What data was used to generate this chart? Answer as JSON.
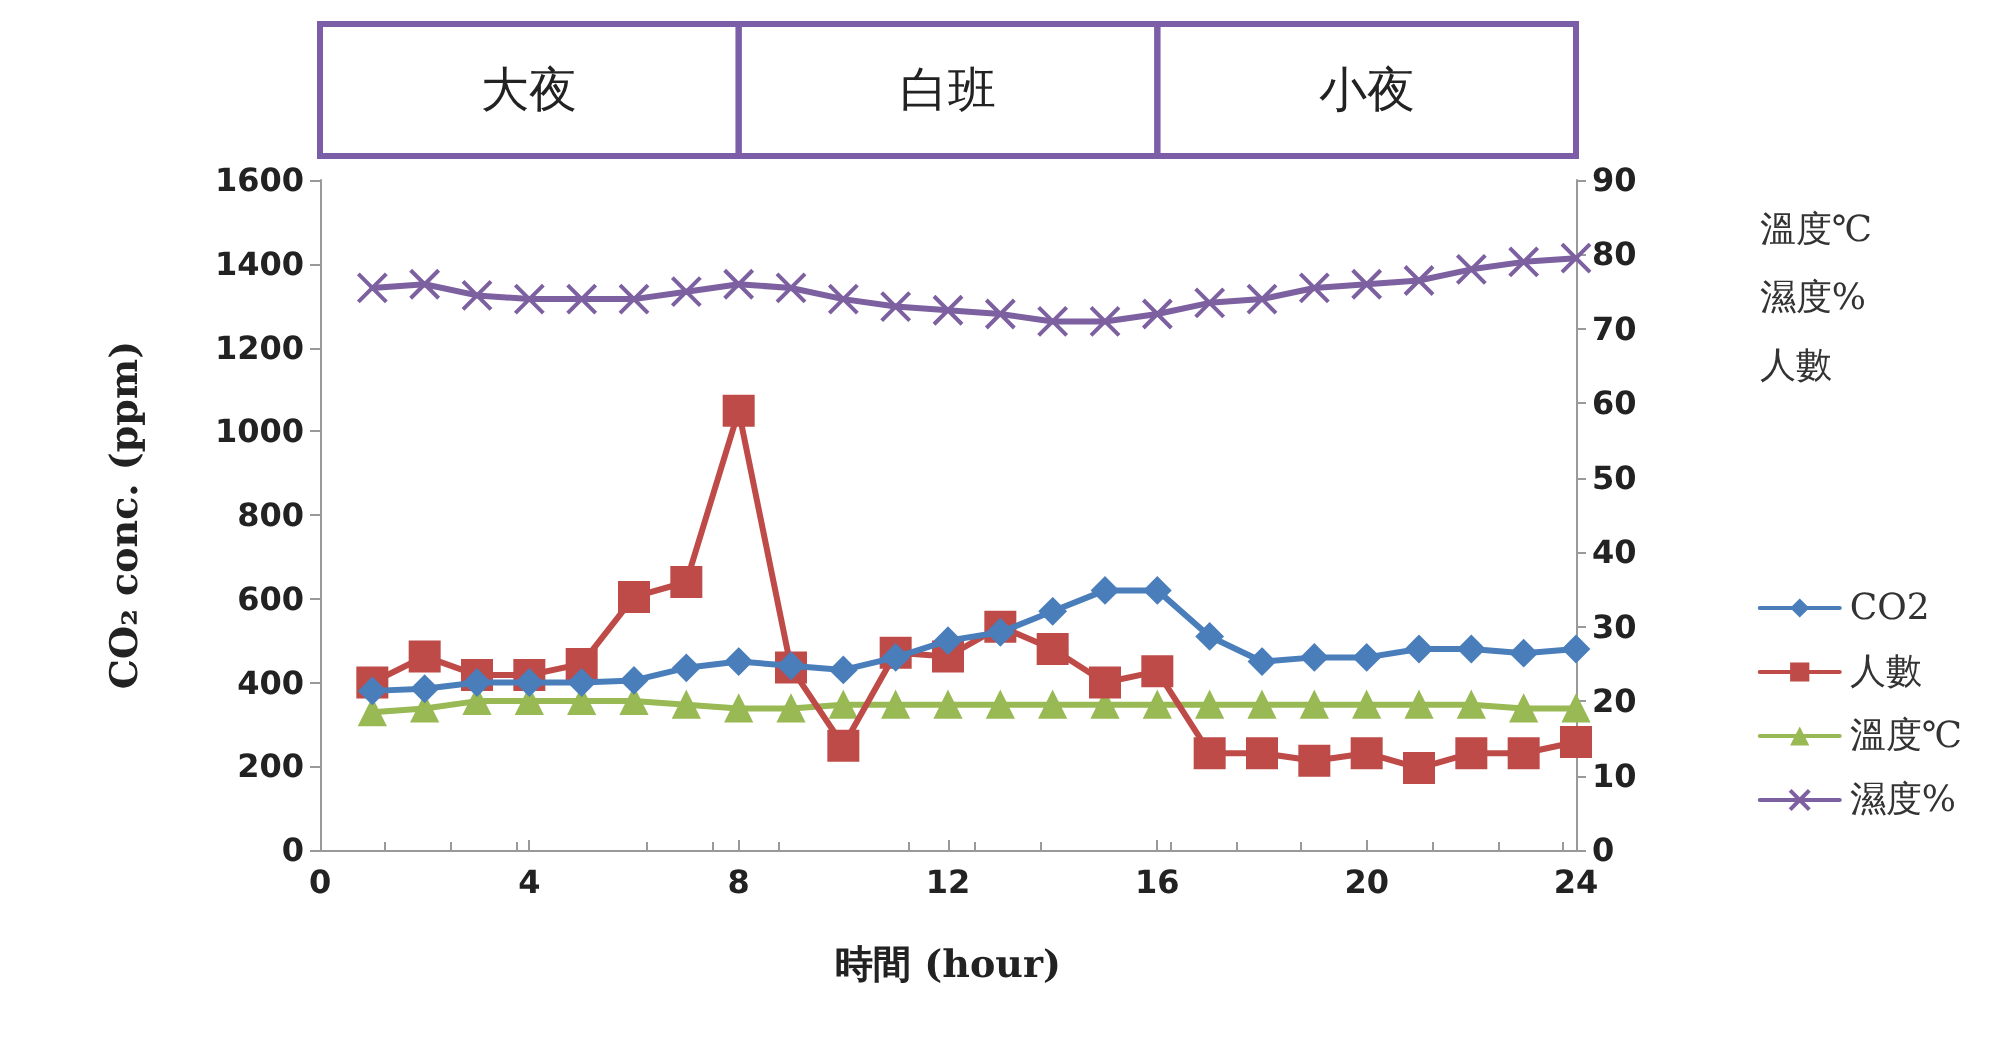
{
  "chart_data": {
    "type": "line",
    "xlabel": "時間 (hour)",
    "ylabel": "CO₂ conc. (ppm)",
    "y2label": "溫度℃\n濕度%\n人數",
    "x": [
      1,
      2,
      3,
      4,
      5,
      6,
      7,
      8,
      9,
      10,
      11,
      12,
      13,
      14,
      15,
      16,
      17,
      18,
      19,
      20,
      21,
      22,
      23,
      24
    ],
    "xlim": [
      0,
      24
    ],
    "xticks": [
      0,
      4,
      8,
      12,
      16,
      20,
      24
    ],
    "ylim": [
      0,
      1600
    ],
    "yticks": [
      0,
      200,
      400,
      600,
      800,
      1000,
      1200,
      1400,
      1600
    ],
    "y2lim": [
      0,
      90
    ],
    "y2ticks": [
      0,
      10,
      20,
      30,
      40,
      50,
      60,
      70,
      80,
      90
    ],
    "grid": false,
    "legend": "right",
    "annotations": [
      "大夜",
      "白班",
      "小夜"
    ],
    "series": [
      {
        "name": "CO2",
        "color": "#4a7ebb",
        "marker": "diamond",
        "values": [
          380,
          385,
          400,
          400,
          400,
          405,
          435,
          450,
          440,
          430,
          460,
          500,
          520,
          570,
          620,
          620,
          510,
          450,
          460,
          460,
          480,
          480,
          470,
          480
        ]
      },
      {
        "name": "人數",
        "color": "#be4b48",
        "marker": "square",
        "axis": "y2",
        "values": [
          22.5,
          26,
          23.5,
          23.5,
          25,
          34,
          36,
          59,
          24.5,
          14,
          26.5,
          26,
          30,
          27,
          22.5,
          24,
          13,
          13,
          12,
          13,
          11,
          13,
          13,
          14.5
        ]
      },
      {
        "name": "溫度℃",
        "color": "#98b954",
        "marker": "triangle",
        "axis": "y2",
        "values": [
          18.5,
          19,
          20,
          20,
          20,
          20,
          19.5,
          19,
          19,
          19.5,
          19.5,
          19.5,
          19.5,
          19.5,
          19.5,
          19.5,
          19.5,
          19.5,
          19.5,
          19.5,
          19.5,
          19.5,
          19,
          19
        ]
      },
      {
        "name": "濕度%",
        "color": "#7d60a0",
        "marker": "cross",
        "axis": "y2",
        "values": [
          75.5,
          76,
          74.5,
          74,
          74,
          74,
          75,
          76,
          75.5,
          74,
          73,
          72.5,
          72,
          71,
          71,
          72,
          73.5,
          74,
          75.5,
          76,
          76.5,
          78,
          79,
          79.5
        ]
      }
    ]
  }
}
